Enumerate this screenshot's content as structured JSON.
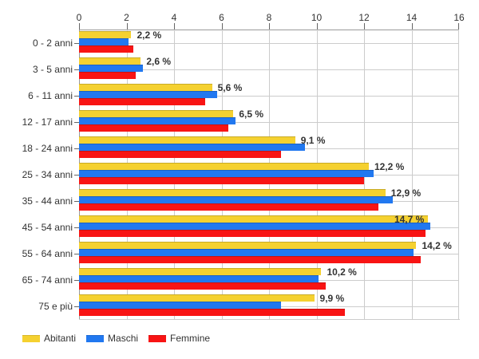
{
  "chart_data": {
    "type": "bar",
    "orientation": "horizontal",
    "title": "",
    "categories": [
      "0 - 2 anni",
      "3 - 5 anni",
      "6 - 11 anni",
      "12 - 17 anni",
      "18 - 24 anni",
      "25 - 34 anni",
      "35 - 44 anni",
      "45 - 54 anni",
      "55 - 64 anni",
      "65 - 74 anni",
      "75 e più"
    ],
    "series": [
      {
        "name": "Abitanti",
        "color": "#F5D130",
        "values": [
          2.2,
          2.6,
          5.6,
          6.5,
          9.1,
          12.2,
          12.9,
          14.7,
          14.2,
          10.2,
          9.9
        ]
      },
      {
        "name": "Maschi",
        "color": "#2178F0",
        "values": [
          2.1,
          2.7,
          5.8,
          6.6,
          9.5,
          12.4,
          13.2,
          14.8,
          14.1,
          10.1,
          8.5
        ]
      },
      {
        "name": "Femmine",
        "color": "#F81414",
        "values": [
          2.3,
          2.4,
          5.3,
          6.3,
          8.5,
          12.0,
          12.6,
          14.6,
          14.4,
          10.4,
          11.2
        ]
      }
    ],
    "value_labels": [
      "2,2 %",
      "2,6 %",
      "5,6 %",
      "6,5 %",
      "9,1 %",
      "12,2 %",
      "12,9 %",
      "14,7 %",
      "14,2 %",
      "10,2 %",
      "9,9 %"
    ],
    "x_axis": {
      "min": 0,
      "max": 16,
      "ticks": [
        0,
        2,
        4,
        6,
        8,
        10,
        12,
        14,
        16
      ],
      "tick_labels": [
        "0",
        "2",
        "4",
        "6",
        "8",
        "10",
        "12",
        "14",
        "16"
      ]
    },
    "grid": true,
    "legend_position": "bottom",
    "style": {
      "grid_color": "#cccccc",
      "axis_color": "#999999",
      "label_color": "#333333",
      "background": "#ffffff"
    }
  }
}
